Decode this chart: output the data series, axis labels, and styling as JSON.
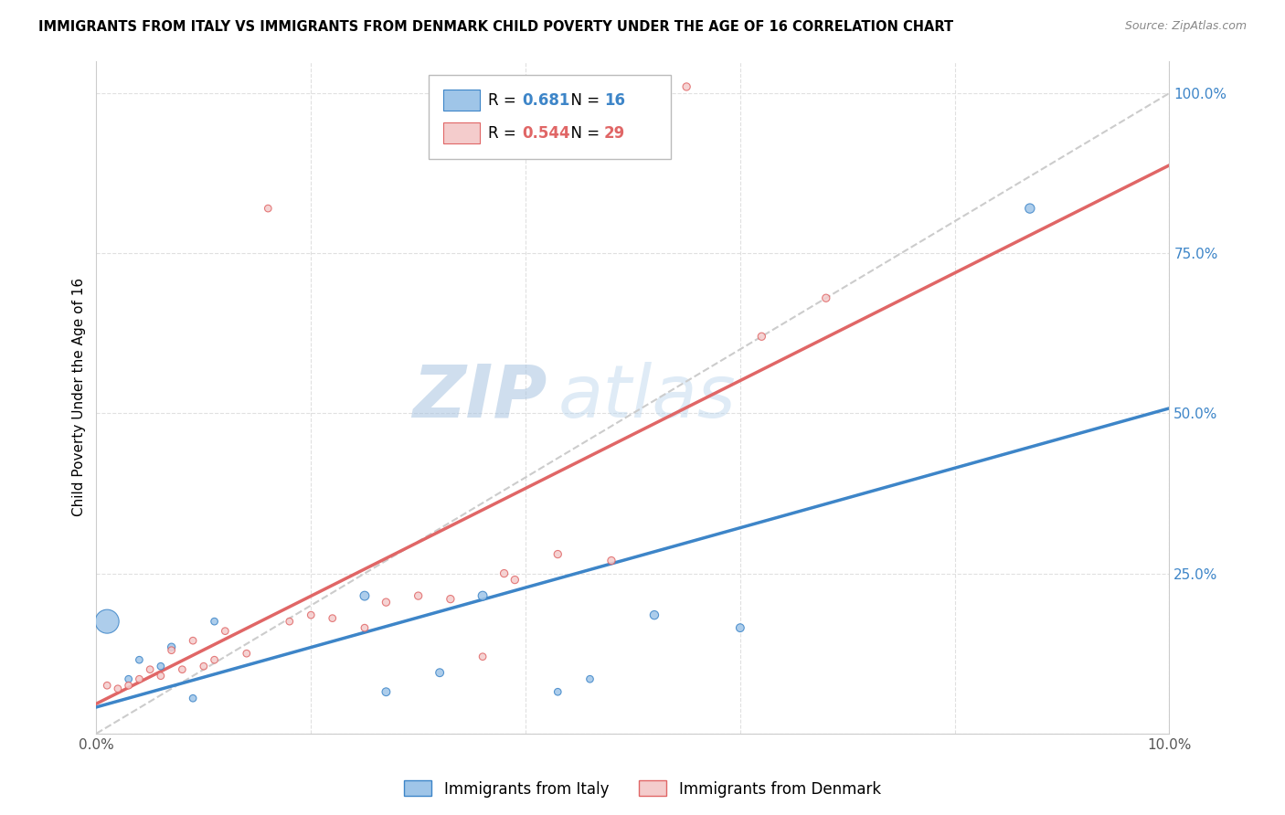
{
  "title": "IMMIGRANTS FROM ITALY VS IMMIGRANTS FROM DENMARK CHILD POVERTY UNDER THE AGE OF 16 CORRELATION CHART",
  "source": "Source: ZipAtlas.com",
  "ylabel": "Child Poverty Under the Age of 16",
  "legend_label_italy": "Immigrants from Italy",
  "legend_label_denmark": "Immigrants from Denmark",
  "R_italy": 0.681,
  "N_italy": 16,
  "R_denmark": 0.544,
  "N_denmark": 29,
  "xlim": [
    0.0,
    0.1
  ],
  "ylim": [
    0.0,
    1.05
  ],
  "x_ticks": [
    0.0,
    0.02,
    0.04,
    0.06,
    0.08,
    0.1
  ],
  "x_tick_labels": [
    "0.0%",
    "",
    "",
    "",
    "",
    "10.0%"
  ],
  "y_ticks_right": [
    0.0,
    0.25,
    0.5,
    0.75,
    1.0
  ],
  "y_tick_labels_right": [
    "",
    "25.0%",
    "50.0%",
    "75.0%",
    "100.0%"
  ],
  "color_italy": "#9fc5e8",
  "color_denmark": "#f4cccc",
  "color_denmark_line": "#e06666",
  "color_italy_line": "#3d85c8",
  "color_dashed": "#cccccc",
  "watermark": "ZIPatlas",
  "italy_x": [
    0.001,
    0.003,
    0.004,
    0.006,
    0.007,
    0.009,
    0.011,
    0.025,
    0.027,
    0.032,
    0.036,
    0.043,
    0.046,
    0.052,
    0.06,
    0.087
  ],
  "italy_y": [
    0.175,
    0.085,
    0.115,
    0.105,
    0.135,
    0.055,
    0.175,
    0.215,
    0.065,
    0.095,
    0.215,
    0.065,
    0.085,
    0.185,
    0.165,
    0.82
  ],
  "italy_size": [
    350,
    30,
    30,
    30,
    35,
    30,
    30,
    50,
    40,
    40,
    50,
    30,
    30,
    45,
    40,
    55
  ],
  "denmark_x": [
    0.001,
    0.002,
    0.003,
    0.004,
    0.005,
    0.006,
    0.007,
    0.008,
    0.009,
    0.01,
    0.011,
    0.012,
    0.014,
    0.016,
    0.018,
    0.02,
    0.022,
    0.025,
    0.027,
    0.03,
    0.033,
    0.036,
    0.039,
    0.038,
    0.043,
    0.048,
    0.055,
    0.062,
    0.068
  ],
  "denmark_y": [
    0.075,
    0.07,
    0.075,
    0.085,
    0.1,
    0.09,
    0.13,
    0.1,
    0.145,
    0.105,
    0.115,
    0.16,
    0.125,
    0.82,
    0.175,
    0.185,
    0.18,
    0.165,
    0.205,
    0.215,
    0.21,
    0.12,
    0.24,
    0.25,
    0.28,
    0.27,
    1.01,
    0.62,
    0.68
  ],
  "denmark_size": [
    30,
    30,
    30,
    30,
    30,
    30,
    30,
    30,
    30,
    30,
    30,
    30,
    30,
    30,
    30,
    30,
    30,
    30,
    35,
    35,
    35,
    30,
    35,
    35,
    35,
    35,
    35,
    35,
    35
  ]
}
